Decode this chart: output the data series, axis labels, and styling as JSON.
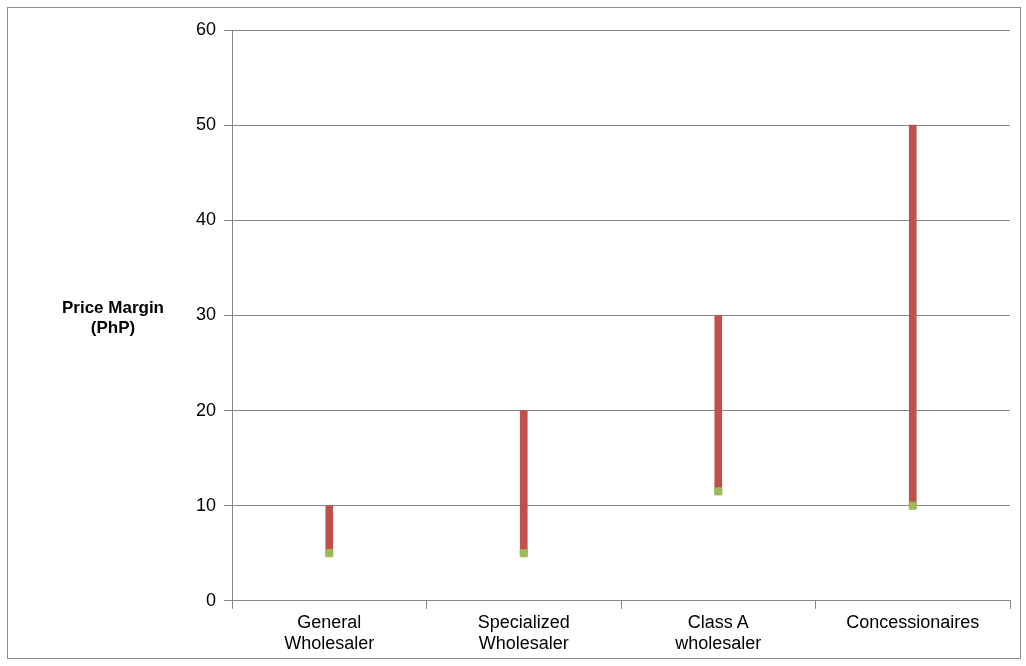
{
  "chart_data": {
    "type": "bar",
    "ylabel": "Price Margin (PhP)",
    "categories": [
      "General Wholesaler",
      "Specialized Wholesaler",
      "Class A wholesaler",
      "Concessionaires"
    ],
    "series": [
      {
        "color": "#c0504d",
        "base": [
          5,
          5,
          11.5,
          10
        ],
        "values": [
          5,
          15,
          18.5,
          40
        ]
      },
      {
        "type": "scatter",
        "color": "#9bbb59",
        "marker": "square",
        "x": [
          "General Wholesaler",
          "Specialized Wholesaler",
          "Class A wholesaler",
          "Concessionaires"
        ],
        "values": [
          5,
          5,
          11.5,
          10
        ]
      }
    ],
    "ylim": [
      0,
      60
    ],
    "yticks": [
      0,
      10,
      20,
      30,
      40,
      50,
      60
    ],
    "grid": "y",
    "legend": false
  }
}
